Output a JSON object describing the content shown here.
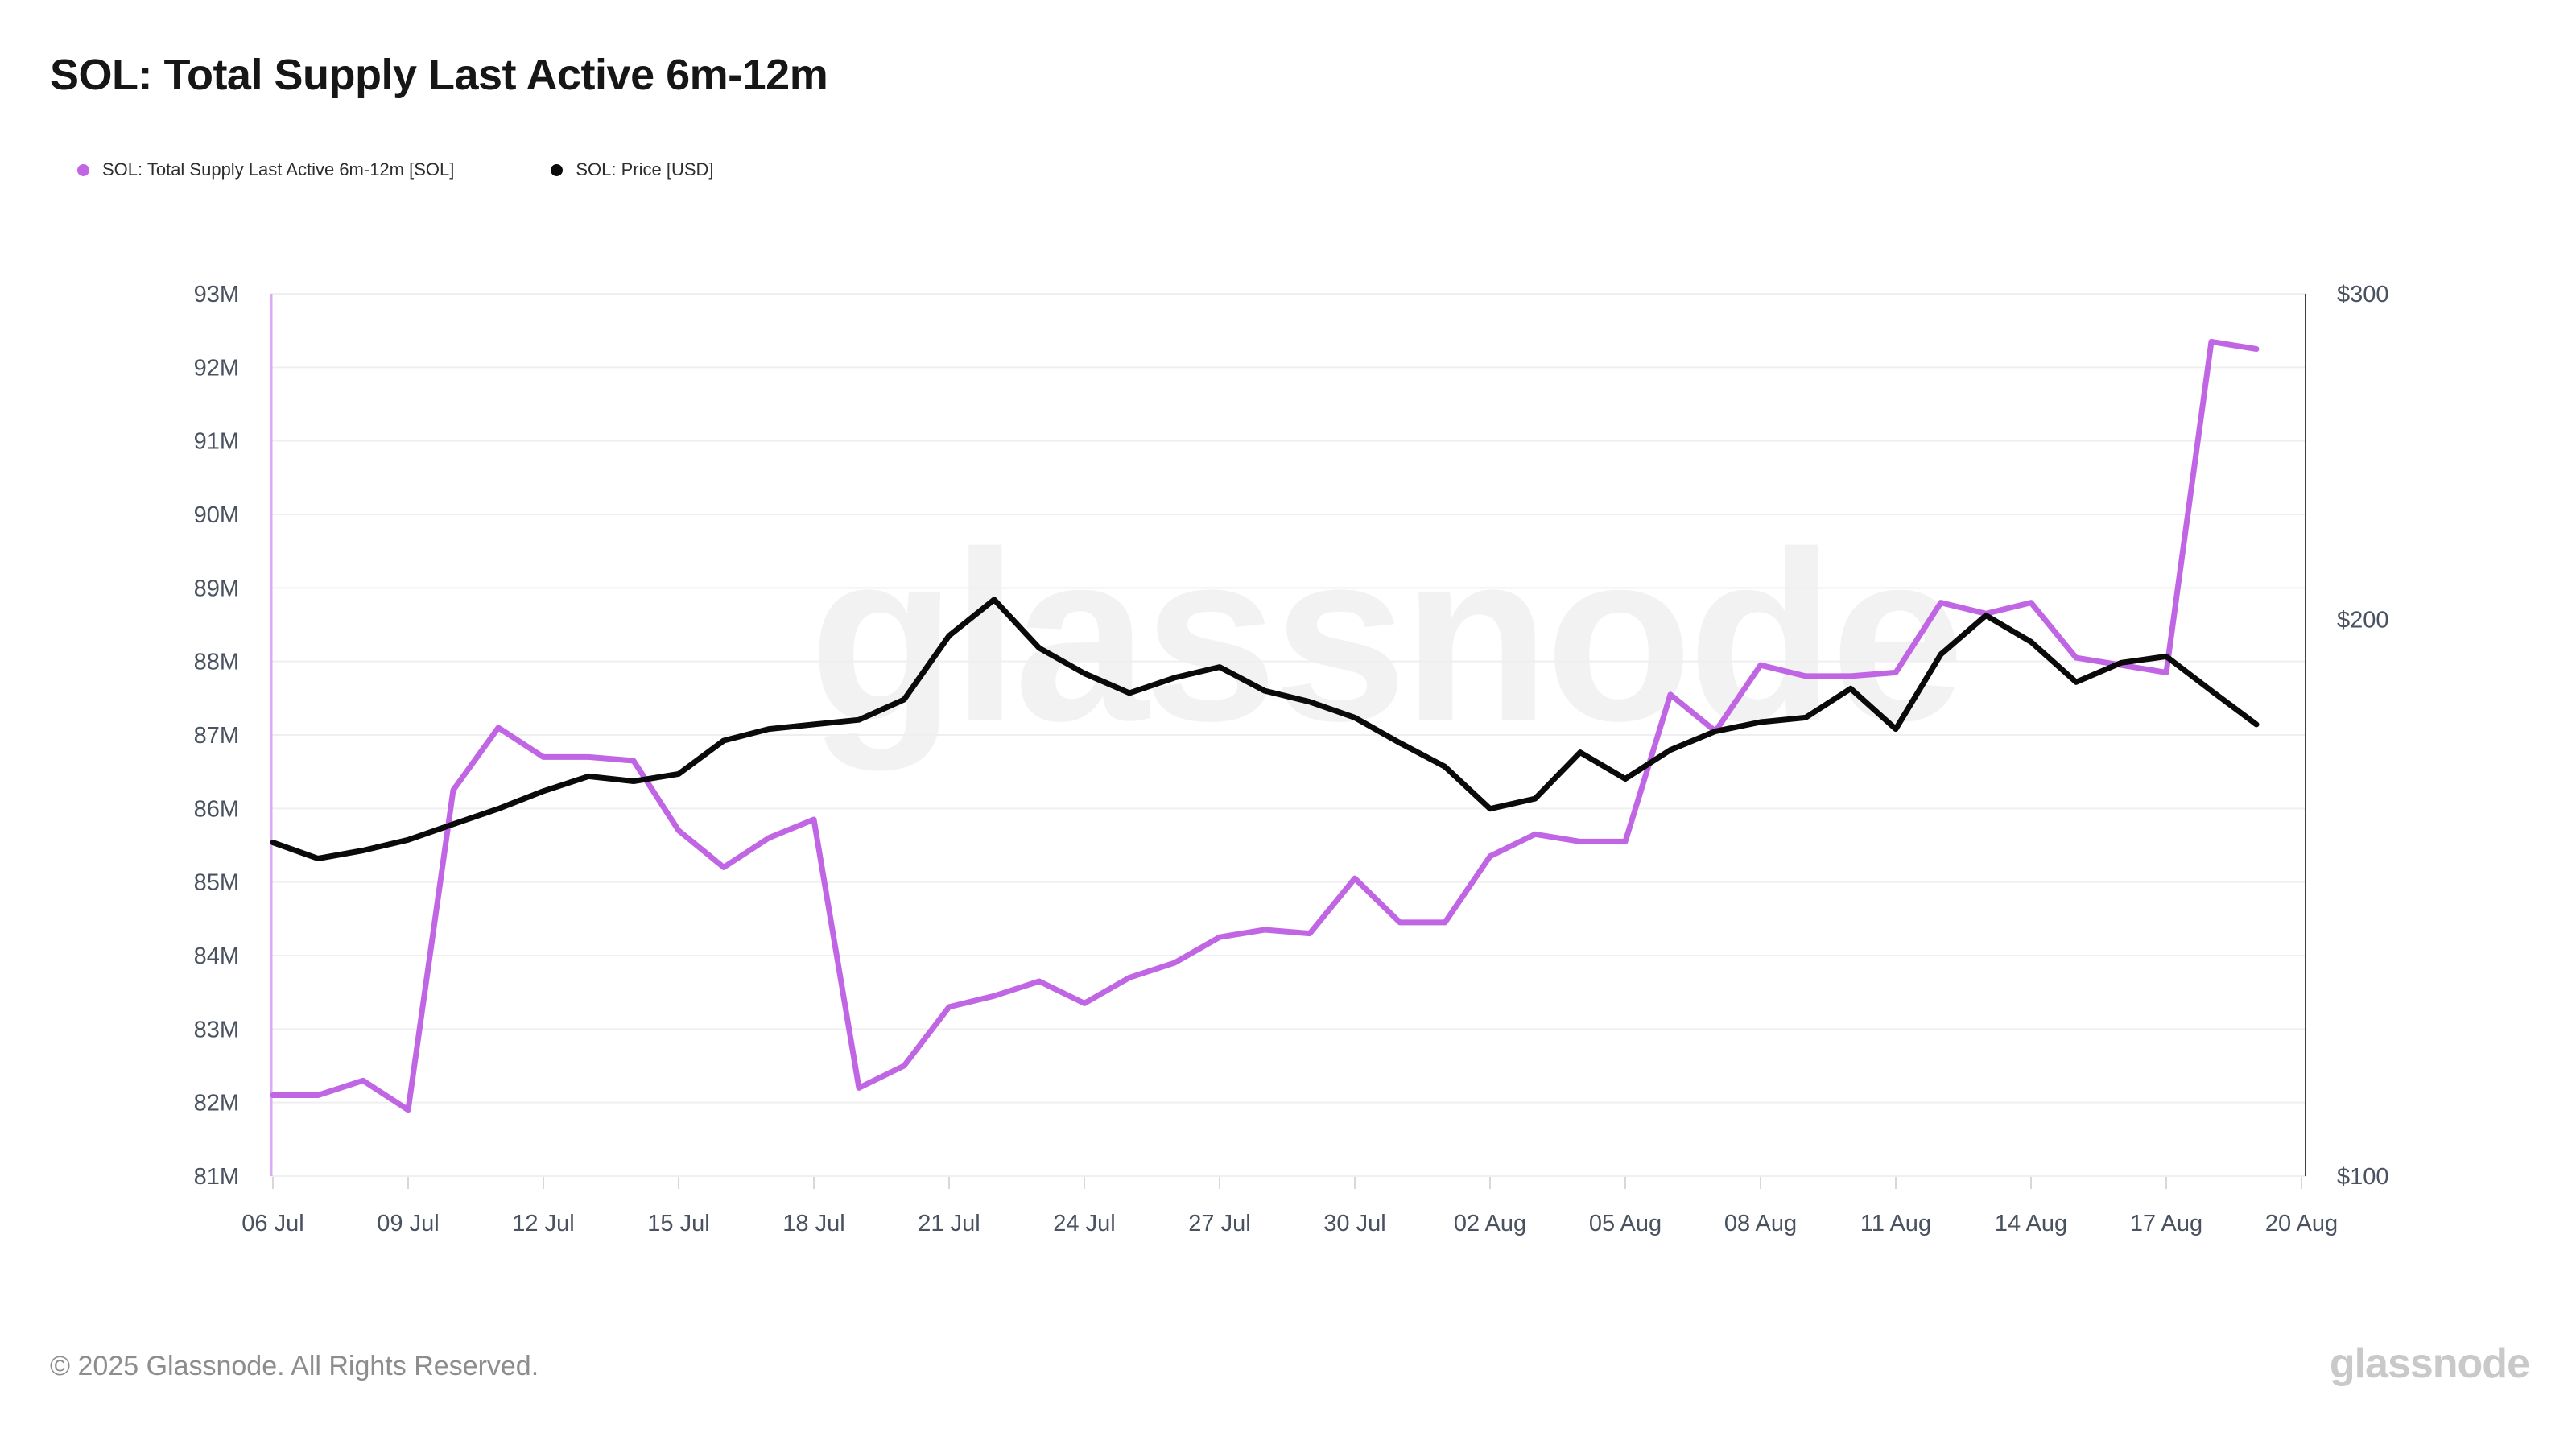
{
  "title": "SOL: Total Supply Last Active 6m-12m",
  "legend": [
    {
      "label": "SOL: Total Supply Last Active 6m-12m [SOL]",
      "color": "#c066e4"
    },
    {
      "label": "SOL: Price [USD]",
      "color": "#0a0a0a"
    }
  ],
  "watermark": "glassnode",
  "logo_text": "glassnode",
  "footer": {
    "copyright": "© 2025 Glassnode. All Rights Reserved."
  },
  "chart_data": {
    "type": "line",
    "x": [
      "06 Jul",
      "07 Jul",
      "08 Jul",
      "09 Jul",
      "10 Jul",
      "11 Jul",
      "12 Jul",
      "13 Jul",
      "14 Jul",
      "15 Jul",
      "16 Jul",
      "17 Jul",
      "18 Jul",
      "19 Jul",
      "20 Jul",
      "21 Jul",
      "22 Jul",
      "23 Jul",
      "24 Jul",
      "25 Jul",
      "26 Jul",
      "27 Jul",
      "28 Jul",
      "29 Jul",
      "30 Jul",
      "31 Jul",
      "01 Aug",
      "02 Aug",
      "03 Aug",
      "04 Aug",
      "05 Aug",
      "06 Aug",
      "07 Aug",
      "08 Aug",
      "09 Aug",
      "10 Aug",
      "11 Aug",
      "12 Aug",
      "13 Aug",
      "14 Aug",
      "15 Aug",
      "16 Aug",
      "17 Aug",
      "18 Aug",
      "19 Aug"
    ],
    "x_tick_labels": [
      "06 Jul",
      "09 Jul",
      "12 Jul",
      "15 Jul",
      "18 Jul",
      "21 Jul",
      "24 Jul",
      "27 Jul",
      "30 Jul",
      "02 Aug",
      "05 Aug",
      "08 Aug",
      "11 Aug",
      "14 Aug",
      "17 Aug",
      "20 Aug"
    ],
    "x_tick_every_days": 3,
    "series": [
      {
        "name": "SOL: Total Supply Last Active 6m-12m [SOL]",
        "axis": "left",
        "unit": "million SOL",
        "color": "#c066e4",
        "values": [
          82.1,
          82.1,
          82.3,
          81.9,
          86.25,
          87.1,
          86.7,
          86.7,
          86.65,
          85.7,
          85.2,
          85.6,
          85.85,
          82.2,
          82.5,
          83.3,
          83.45,
          83.65,
          83.35,
          83.7,
          83.9,
          84.25,
          84.35,
          84.3,
          85.05,
          84.45,
          84.45,
          85.35,
          85.65,
          85.55,
          85.55,
          87.55,
          87.05,
          87.95,
          87.8,
          87.8,
          87.85,
          88.8,
          88.65,
          88.8,
          88.05,
          87.95,
          87.85,
          92.35,
          92.25
        ]
      },
      {
        "name": "SOL: Price [USD]",
        "axis": "right",
        "unit": "USD",
        "color": "#0a0a0a",
        "values": [
          151.5,
          148.5,
          150,
          152,
          155,
          158,
          161.5,
          164.5,
          163.5,
          165,
          172,
          174.5,
          175.5,
          176.5,
          181,
          196,
          205,
          193,
          187,
          182.5,
          186,
          188.5,
          183,
          180.5,
          177,
          171.5,
          166.5,
          158,
          160,
          169.5,
          164,
          170,
          174,
          176,
          177,
          183.5,
          174.5,
          191.5,
          201,
          194.5,
          185,
          189.5,
          191,
          183,
          175.5
        ]
      }
    ],
    "left_axis": {
      "scale": "linear",
      "min": 81,
      "max": 93,
      "unit": "M SOL",
      "ticks": [
        "93M",
        "92M",
        "91M",
        "90M",
        "89M",
        "88M",
        "87M",
        "86M",
        "85M",
        "84M",
        "83M",
        "82M",
        "81M"
      ],
      "tick_values": [
        93,
        92,
        91,
        90,
        89,
        88,
        87,
        86,
        85,
        84,
        83,
        82,
        81
      ],
      "axis_line_color": "#dcaaf2"
    },
    "right_axis": {
      "scale": "log",
      "min": 100,
      "max": 300,
      "unit": "USD",
      "ticks": [
        "$300",
        "$200",
        "$100"
      ],
      "tick_values": [
        300,
        200,
        100
      ],
      "axis_line_color": "#3c4048"
    },
    "grid": "horizontal",
    "grid_color": "#efefef",
    "tick_color": "#d8d8d8",
    "tick_text_color": "#4a5260",
    "legend_position": "top-left"
  }
}
